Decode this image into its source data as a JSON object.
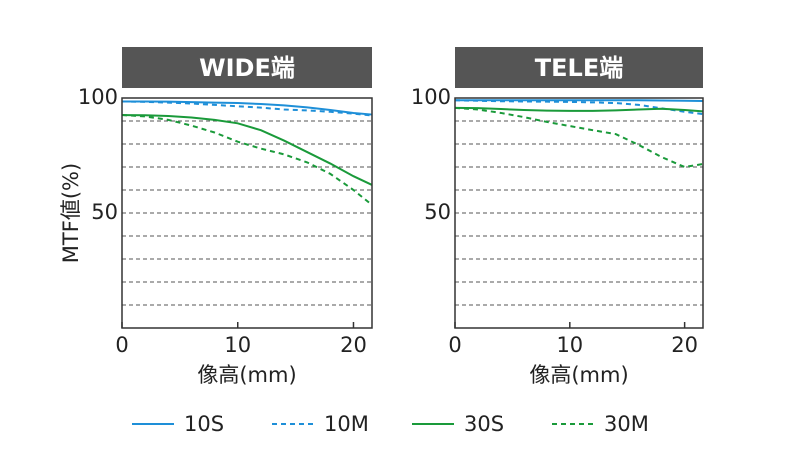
{
  "chart_data": [
    {
      "type": "line",
      "title": "WIDE端",
      "xlabel": "像高(mm)",
      "ylabel": "MTF値(%)",
      "x": [
        0,
        2,
        4,
        6,
        8,
        10,
        12,
        14,
        16,
        18,
        20,
        21.6
      ],
      "xlim": [
        0,
        21.6
      ],
      "ylim": [
        0,
        100
      ],
      "xticks": [
        0,
        10,
        20
      ],
      "yticks": [
        50,
        100
      ],
      "minor_yticks": [
        10,
        20,
        30,
        40,
        60,
        70,
        80,
        90
      ],
      "grid": true,
      "series": [
        {
          "name": "10S",
          "color": "#1e8fd8",
          "dashed": false,
          "values": [
            98.5,
            98.5,
            98.4,
            98.2,
            98,
            97.8,
            97.4,
            96.8,
            95.9,
            94.8,
            93.5,
            92.8
          ]
        },
        {
          "name": "10M",
          "color": "#1e8fd8",
          "dashed": true,
          "values": [
            98.5,
            98.3,
            98,
            97.6,
            97,
            96.4,
            95.8,
            95,
            94.6,
            94,
            93.2,
            92.4
          ]
        },
        {
          "name": "30S",
          "color": "#1a9a3a",
          "dashed": false,
          "values": [
            92.6,
            92.5,
            92.2,
            91.5,
            90.5,
            89,
            86,
            81.5,
            76.5,
            71.5,
            66,
            62.2
          ]
        },
        {
          "name": "30M",
          "color": "#1a9a3a",
          "dashed": true,
          "values": [
            92.6,
            92,
            90.5,
            88,
            85,
            81,
            78,
            75.5,
            72,
            67,
            60,
            53.5
          ]
        }
      ]
    },
    {
      "type": "line",
      "title": "TELE端",
      "xlabel": "像高(mm)",
      "x": [
        0,
        2,
        4,
        6,
        8,
        10,
        12,
        14,
        16,
        18,
        20,
        21.6
      ],
      "xlim": [
        0,
        21.6
      ],
      "ylim": [
        0,
        100
      ],
      "xticks": [
        0,
        10,
        20
      ],
      "yticks": [
        50,
        100
      ],
      "minor_yticks": [
        10,
        20,
        30,
        40,
        60,
        70,
        80,
        90
      ],
      "grid": true,
      "series": [
        {
          "color": "#1e8fd8",
          "dashed": false,
          "values": [
            99,
            99,
            99,
            99,
            99,
            99,
            99,
            99,
            99,
            98.9,
            98.8,
            98.7
          ]
        },
        {
          "color": "#1e8fd8",
          "dashed": true,
          "values": [
            99,
            98.8,
            98.6,
            98.5,
            98.4,
            98.3,
            98.1,
            97.8,
            97,
            95.5,
            94,
            93
          ]
        },
        {
          "color": "#1a9a3a",
          "dashed": false,
          "values": [
            95.7,
            95.6,
            95.2,
            94.8,
            94.5,
            94.4,
            94.4,
            94.6,
            95,
            95.3,
            94.8,
            94.2
          ]
        },
        {
          "color": "#1a9a3a",
          "dashed": true,
          "values": [
            95.7,
            95,
            93.5,
            91.7,
            89.6,
            87.8,
            86,
            84.3,
            79.6,
            74.3,
            70,
            71.3
          ]
        }
      ]
    }
  ]
}
